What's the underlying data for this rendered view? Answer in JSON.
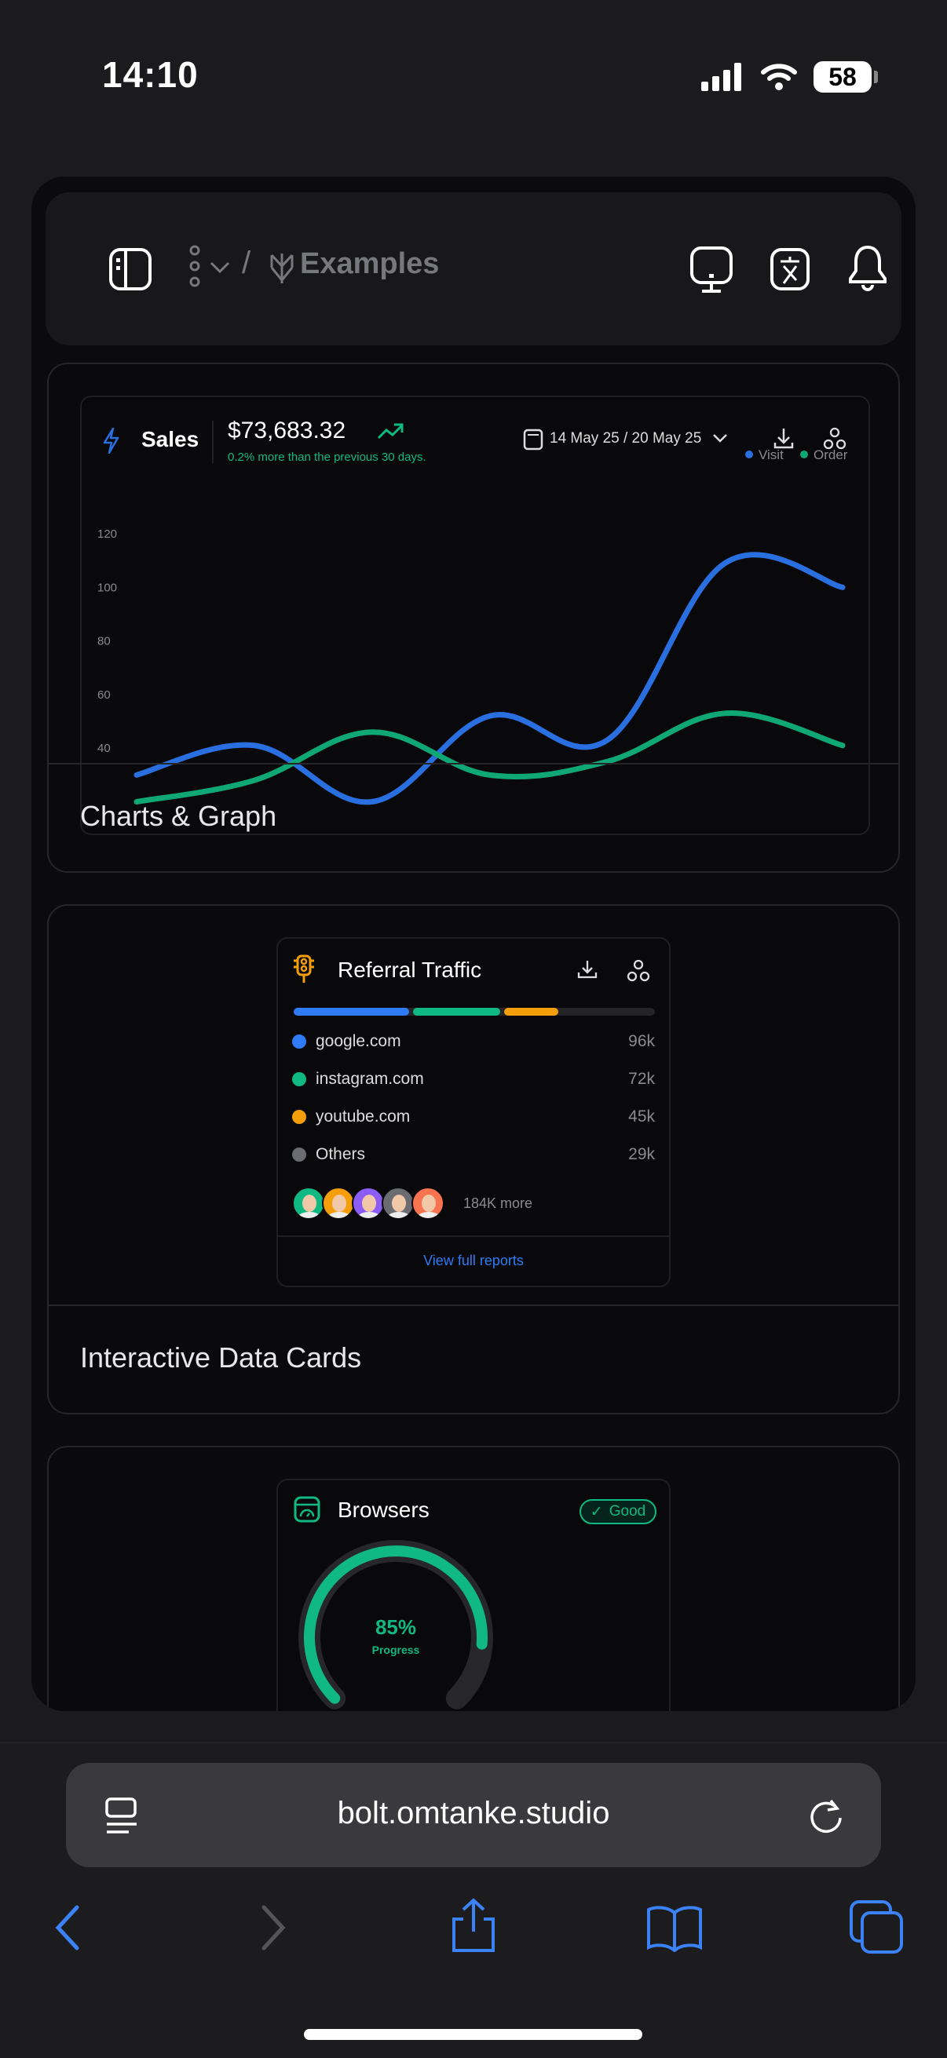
{
  "status_bar": {
    "time": "14:10",
    "battery": "58"
  },
  "header": {
    "breadcrumb_separator": "/",
    "breadcrumb_page": "Examples"
  },
  "sections": [
    {
      "label": "Charts & Graph"
    },
    {
      "label": "Interactive Data Cards"
    }
  ],
  "sales_card": {
    "title": "Sales",
    "amount": "$73,683.32",
    "change_text": "0.2% more than the previous 30 days.",
    "date_range": "14 May 25 / 20 May 25"
  },
  "chart_data": {
    "type": "line",
    "x": [
      1,
      2,
      3,
      4,
      5,
      6,
      7
    ],
    "ylim": [
      0,
      130
    ],
    "yticks": [
      40,
      60,
      80,
      100,
      120
    ],
    "grid": false,
    "legend": "top-right",
    "series": [
      {
        "name": "Visit",
        "color": "#2a6fe0",
        "values": [
          30,
          41,
          20,
          52,
          43,
          109,
          100
        ]
      },
      {
        "name": "Order",
        "color": "#0fa874",
        "values": [
          20,
          28,
          46,
          30,
          35,
          53,
          41
        ]
      }
    ]
  },
  "referral_card": {
    "title": "Referral Traffic",
    "sources": [
      {
        "name": "google.com",
        "value": "96k",
        "color": "#2f7bf6",
        "share": 32
      },
      {
        "name": "instagram.com",
        "value": "72k",
        "color": "#10b981",
        "share": 24
      },
      {
        "name": "youtube.com",
        "value": "45k",
        "color": "#f59e0b",
        "share": 15
      },
      {
        "name": "Others",
        "value": "29k",
        "color": "#6b6b72",
        "share": 0
      }
    ],
    "avatar_colors": [
      "#10b981",
      "#f59e0b",
      "#8b5cf6",
      "#6b6b72",
      "#f97350"
    ],
    "more_text": "184K more",
    "link": "View full reports"
  },
  "browsers_card": {
    "title": "Browsers",
    "badge": "Good",
    "progress_value": "85%",
    "progress_fraction": 0.85,
    "progress_label": "Progress"
  },
  "browser": {
    "url": "bolt.omtanke.studio"
  }
}
